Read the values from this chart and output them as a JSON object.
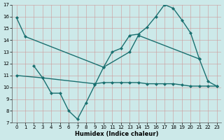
{
  "xlabel": "Humidex (Indice chaleur)",
  "background_color": "#cce9e9",
  "grid_color": "#b0cccc",
  "line_color": "#1a7070",
  "xlim": [
    -0.5,
    23.5
  ],
  "ylim": [
    7,
    17
  ],
  "yticks": [
    7,
    8,
    9,
    10,
    11,
    12,
    13,
    14,
    15,
    16,
    17
  ],
  "xticks": [
    0,
    1,
    2,
    3,
    4,
    5,
    6,
    7,
    8,
    9,
    10,
    11,
    12,
    13,
    14,
    15,
    16,
    17,
    18,
    19,
    20,
    21,
    22,
    23
  ],
  "line1_x": [
    0,
    1,
    10,
    11,
    12,
    13,
    14,
    15,
    16,
    17,
    18,
    19,
    20,
    21
  ],
  "line1_y": [
    15.9,
    14.3,
    11.7,
    13.0,
    13.3,
    14.4,
    14.5,
    15.1,
    16.0,
    17.0,
    16.7,
    15.7,
    14.6,
    12.4
  ],
  "line2_x": [
    2,
    3,
    4,
    5,
    6,
    7,
    8,
    9,
    10,
    13,
    14,
    21,
    22,
    23
  ],
  "line2_y": [
    11.8,
    10.8,
    9.5,
    9.5,
    8.0,
    7.3,
    8.7,
    10.2,
    11.7,
    13.0,
    14.4,
    12.4,
    10.5,
    10.1
  ],
  "line3_x": [
    0,
    3,
    9,
    10,
    11,
    12,
    13,
    14,
    15,
    16,
    17,
    18,
    19,
    20,
    21,
    22,
    23
  ],
  "line3_y": [
    11.0,
    10.8,
    10.3,
    10.4,
    10.4,
    10.4,
    10.4,
    10.4,
    10.3,
    10.3,
    10.3,
    10.3,
    10.2,
    10.1,
    10.1,
    10.1,
    10.1
  ]
}
